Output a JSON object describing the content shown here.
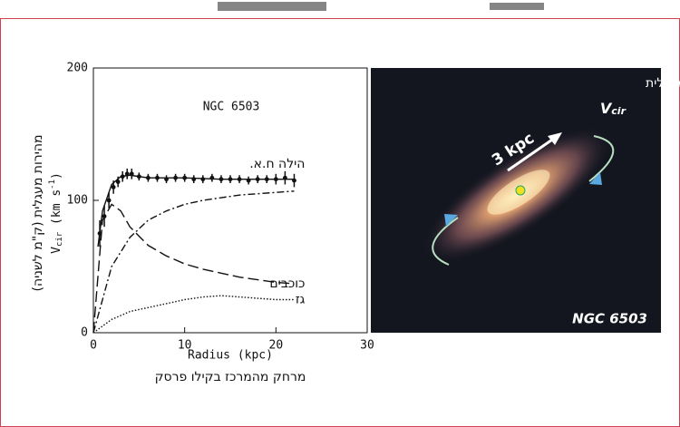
{
  "chart_data": {
    "type": "line",
    "title": "NGC 6503",
    "x_label": "Radius (kpc)",
    "x_label_hebrew": "מרחק מהמרכז בקילו פרסק",
    "y_label_hebrew": "מהירות מעגלית (ק\"מ לשניה)",
    "y_label_parts": [
      "V",
      "cir",
      " (km s",
      "-1",
      ")"
    ],
    "xlim": [
      0,
      30
    ],
    "xticks": [
      0,
      10,
      20,
      30
    ],
    "ylim": [
      0,
      200
    ],
    "yticks": [
      0,
      100,
      200
    ],
    "observed": {
      "x": [
        0.7,
        1.2,
        1.7,
        2.2,
        2.7,
        3.2,
        3.7,
        4.2,
        5,
        6,
        7,
        8,
        9,
        10,
        11,
        12,
        13,
        14,
        15,
        16,
        17,
        18,
        19,
        20,
        21,
        22
      ],
      "values": [
        75,
        88,
        100,
        110,
        114,
        118,
        120,
        120,
        118,
        117,
        117,
        116,
        117,
        117,
        116,
        116,
        117,
        116,
        116,
        116,
        115,
        116,
        116,
        116,
        117,
        115
      ],
      "errors": [
        10,
        8,
        6,
        5,
        4,
        4,
        4,
        4,
        3,
        3,
        3,
        3,
        3,
        3,
        3,
        3,
        3,
        3,
        3,
        3,
        3,
        3,
        3,
        4,
        5,
        5
      ]
    },
    "series": [
      {
        "x": [
          0.5,
          1,
          2,
          3,
          4,
          6,
          8,
          10,
          14,
          18,
          22
        ],
        "values": [
          65,
          92,
          112,
          118,
          119,
          117,
          117,
          117,
          116,
          116,
          116
        ],
        "dash": "none"
      },
      {
        "name": "הילה ח.א.",
        "x": [
          0,
          2,
          4,
          6,
          8,
          10,
          12,
          14,
          16,
          18,
          20,
          22
        ],
        "values": [
          0,
          50,
          72,
          85,
          92,
          97,
          100,
          102,
          104,
          105,
          106,
          107
        ],
        "dash": "8 3 2 3"
      },
      {
        "name": "כוכבים",
        "x": [
          0,
          1,
          2,
          3,
          4,
          6,
          8,
          10,
          12,
          14,
          16,
          18,
          20,
          22
        ],
        "values": [
          0,
          85,
          97,
          92,
          80,
          66,
          58,
          52,
          48,
          45,
          42,
          40,
          38,
          37
        ],
        "dash": "12 5"
      },
      {
        "name": "גז",
        "x": [
          0,
          2,
          4,
          6,
          8,
          10,
          12,
          14,
          16,
          18,
          20,
          22
        ],
        "values": [
          0,
          10,
          16,
          19,
          22,
          25,
          27,
          28,
          27,
          26,
          25,
          25
        ],
        "dash": "1.5 2"
      }
    ],
    "color": "#111"
  },
  "photo": {
    "caption": "מהירות מעגלית",
    "symbol": "V",
    "symbol_sub": "cir",
    "scale": "3 kpc",
    "name": "NGC 6503"
  }
}
